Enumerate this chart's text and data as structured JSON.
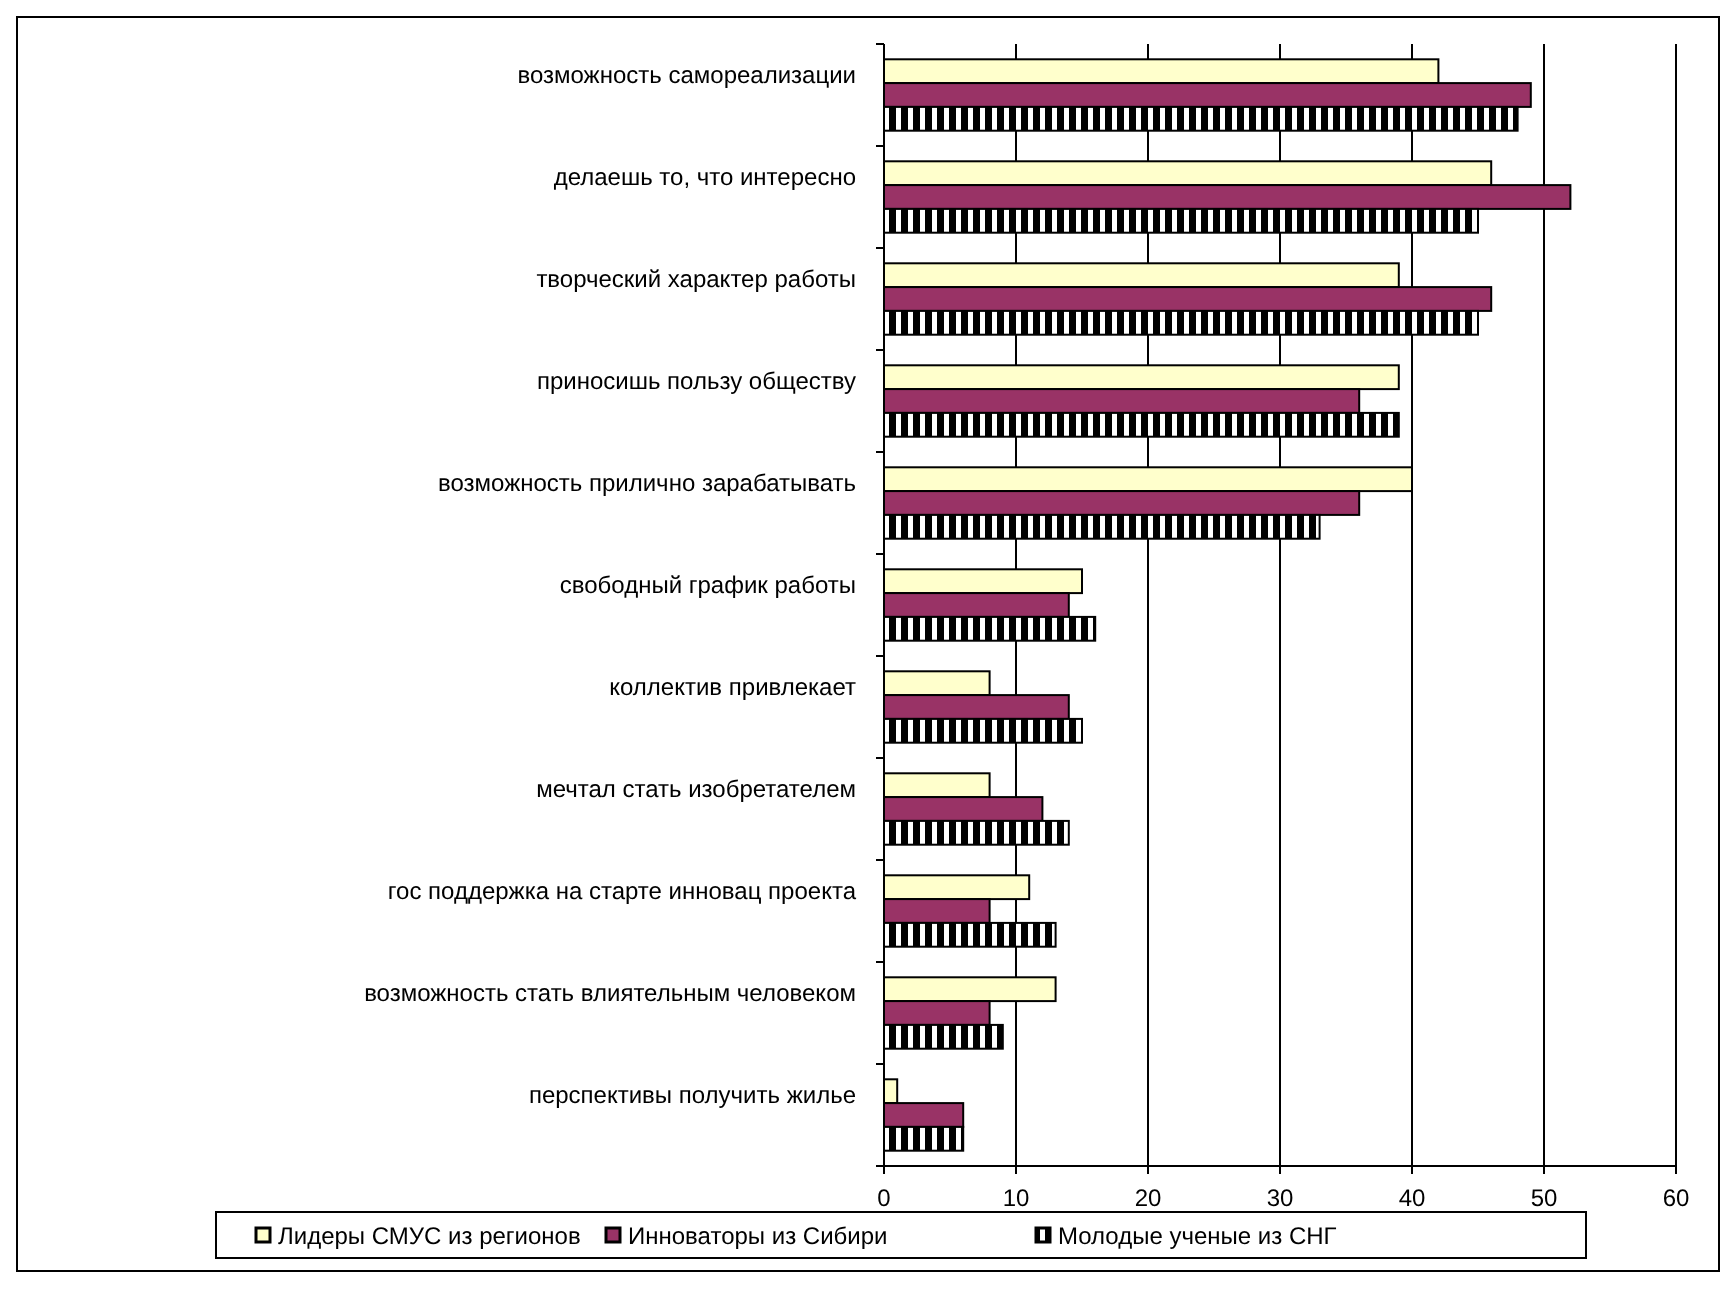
{
  "chart_data": {
    "type": "bar",
    "orientation": "horizontal",
    "categories": [
      "возможность самореализации",
      "делаешь то, что интересно",
      "творческий характер работы ",
      "приносишь пользу обществу",
      "возможность прилично зарабатывать ",
      "свободный график работы",
      "коллектив привлекает",
      "мечтал стать изобретателем ",
      "гос поддержка на старте инновац  проекта",
      "возможность стать влиятельным человеком",
      "перспективы получить жилье"
    ],
    "series": [
      {
        "name": "Лидеры СМУС из регионов",
        "color": "#ffffcc",
        "values": [
          42,
          46,
          39,
          39,
          40,
          15,
          8,
          8,
          11,
          13,
          1
        ]
      },
      {
        "name": "Инноваторы из Сибири",
        "color": "#993366",
        "values": [
          49,
          52,
          46,
          36,
          36,
          14,
          14,
          12,
          8,
          8,
          6
        ]
      },
      {
        "name": "Молодые ученые из СНГ",
        "color": "#000000",
        "values": [
          48,
          45,
          45,
          39,
          33,
          16,
          15,
          14,
          13,
          9,
          6
        ]
      }
    ],
    "xlim": [
      0,
      60
    ],
    "xticks": [
      0,
      10,
      20,
      30,
      40,
      50,
      60
    ],
    "grid": "x",
    "legend": "bottom"
  }
}
